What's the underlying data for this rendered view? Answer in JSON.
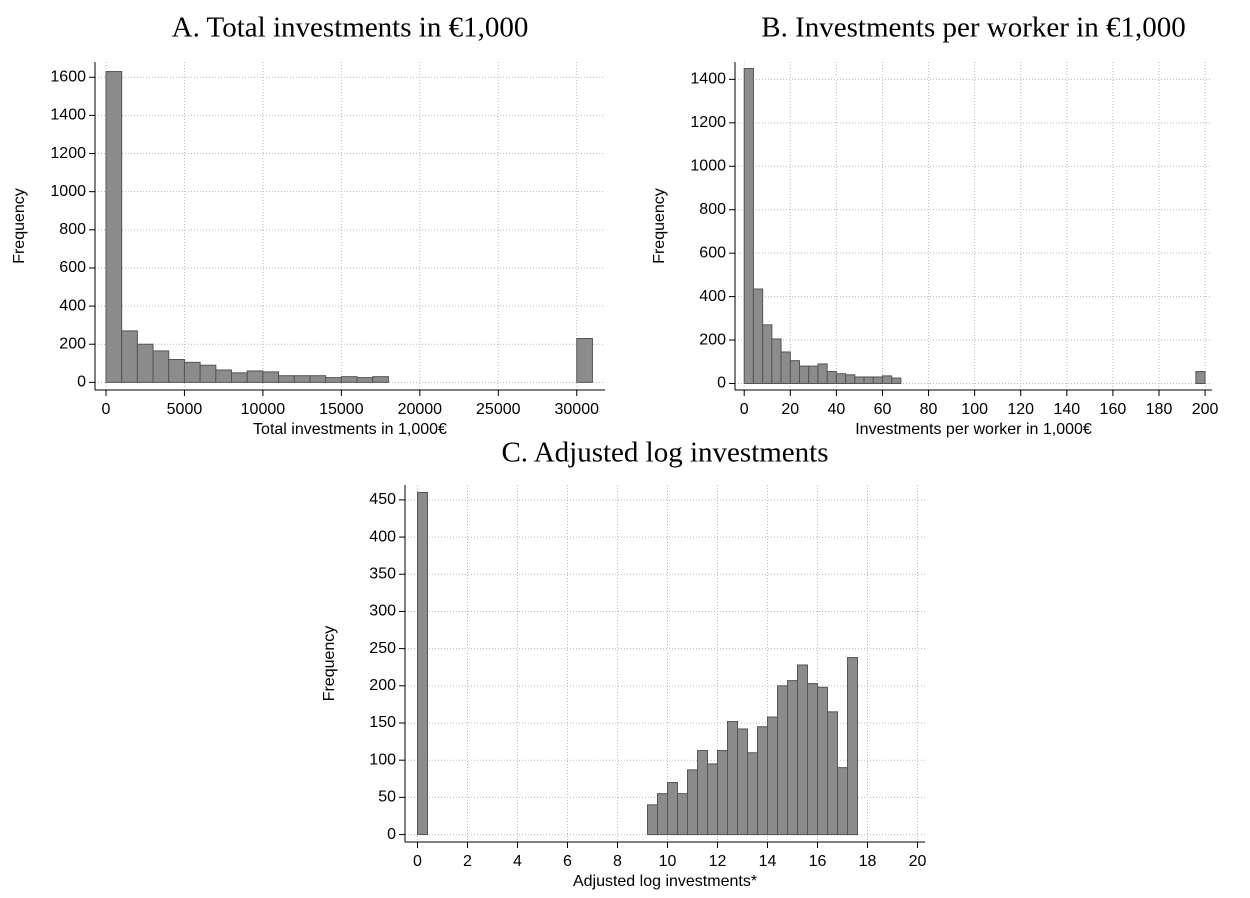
{
  "chart_data": [
    {
      "type": "histogram",
      "title": "A. Total investments in €1,000",
      "xlabel": "Total investments in 1,000€",
      "ylabel": "Frequency",
      "bins": [
        0,
        1000,
        2000,
        3000,
        4000,
        5000,
        6000,
        7000,
        8000,
        9000,
        10000,
        11000,
        12000,
        13000,
        14000,
        15000,
        16000,
        17000,
        18000,
        19000,
        20000,
        21000,
        22000,
        23000,
        24000,
        25000,
        26000,
        27000,
        28000,
        29000,
        30000,
        31000
      ],
      "values": [
        1630,
        270,
        200,
        165,
        120,
        105,
        90,
        65,
        50,
        60,
        55,
        35,
        35,
        35,
        25,
        30,
        25,
        30,
        0,
        0,
        0,
        0,
        0,
        0,
        0,
        0,
        0,
        0,
        0,
        0,
        230
      ],
      "xlim": [
        -700,
        31800
      ],
      "ylim": [
        -40,
        1680
      ],
      "xticks": [
        0,
        5000,
        10000,
        15000,
        20000,
        25000,
        30000
      ],
      "yticks": [
        0,
        200,
        400,
        600,
        800,
        1000,
        1200,
        1400,
        1600
      ],
      "grid": true,
      "color": "#8c8c8c"
    },
    {
      "type": "histogram",
      "title": "B. Investments per worker in €1,000",
      "xlabel": "Investments per worker in 1,000€",
      "ylabel": "Frequency",
      "bins": [
        0,
        4,
        8,
        12,
        16,
        20,
        24,
        28,
        32,
        36,
        40,
        44,
        48,
        52,
        56,
        60,
        64,
        68,
        72,
        76,
        80,
        84,
        88,
        92,
        96,
        100,
        104,
        108,
        112,
        116,
        120,
        124,
        128,
        132,
        136,
        140,
        144,
        148,
        152,
        156,
        160,
        164,
        168,
        172,
        176,
        180,
        184,
        188,
        192,
        196,
        200
      ],
      "values": [
        1450,
        435,
        270,
        205,
        145,
        105,
        80,
        80,
        90,
        55,
        45,
        40,
        30,
        30,
        30,
        35,
        25,
        0,
        0,
        0,
        0,
        0,
        0,
        0,
        0,
        0,
        0,
        0,
        0,
        0,
        0,
        0,
        0,
        0,
        0,
        0,
        0,
        0,
        0,
        0,
        0,
        0,
        0,
        0,
        0,
        0,
        0,
        0,
        0,
        55
      ],
      "xlim": [
        -4,
        203
      ],
      "ylim": [
        -30,
        1480
      ],
      "xticks": [
        0,
        20,
        40,
        60,
        80,
        100,
        120,
        140,
        160,
        180,
        200
      ],
      "yticks": [
        0,
        200,
        400,
        600,
        800,
        1000,
        1200,
        1400
      ],
      "grid": true,
      "color": "#8c8c8c"
    },
    {
      "type": "histogram",
      "title": "C. Adjusted log investments",
      "xlabel": "Adjusted log investments*",
      "ylabel": "Frequency",
      "bins": [
        0,
        0.4,
        0.8,
        1.2,
        1.6,
        2,
        2.4,
        2.8,
        3.2,
        3.6,
        4,
        4.4,
        4.8,
        5.2,
        5.6,
        6,
        6.4,
        6.8,
        7.2,
        7.6,
        8,
        8.4,
        8.8,
        9.2,
        9.6,
        10,
        10.4,
        10.8,
        11.2,
        11.6,
        12,
        12.4,
        12.8,
        13.2,
        13.6,
        14,
        14.4,
        14.8,
        15.2,
        15.6,
        16,
        16.4,
        16.8,
        17.2,
        17.6
      ],
      "values": [
        460,
        0,
        0,
        0,
        0,
        0,
        0,
        0,
        0,
        0,
        0,
        0,
        0,
        0,
        0,
        0,
        0,
        0,
        0,
        0,
        0,
        0,
        0,
        40,
        55,
        70,
        55,
        87,
        113,
        95,
        113,
        152,
        142,
        110,
        145,
        158,
        200,
        207,
        228,
        203,
        198,
        165,
        90,
        238
      ],
      "xlim": [
        -0.5,
        20.3
      ],
      "ylim": [
        -10,
        470
      ],
      "xticks": [
        0,
        2,
        4,
        6,
        8,
        10,
        12,
        14,
        16,
        18,
        20
      ],
      "yticks": [
        0,
        50,
        100,
        150,
        200,
        250,
        300,
        350,
        400,
        450
      ],
      "grid": true,
      "color": "#8c8c8c"
    }
  ]
}
